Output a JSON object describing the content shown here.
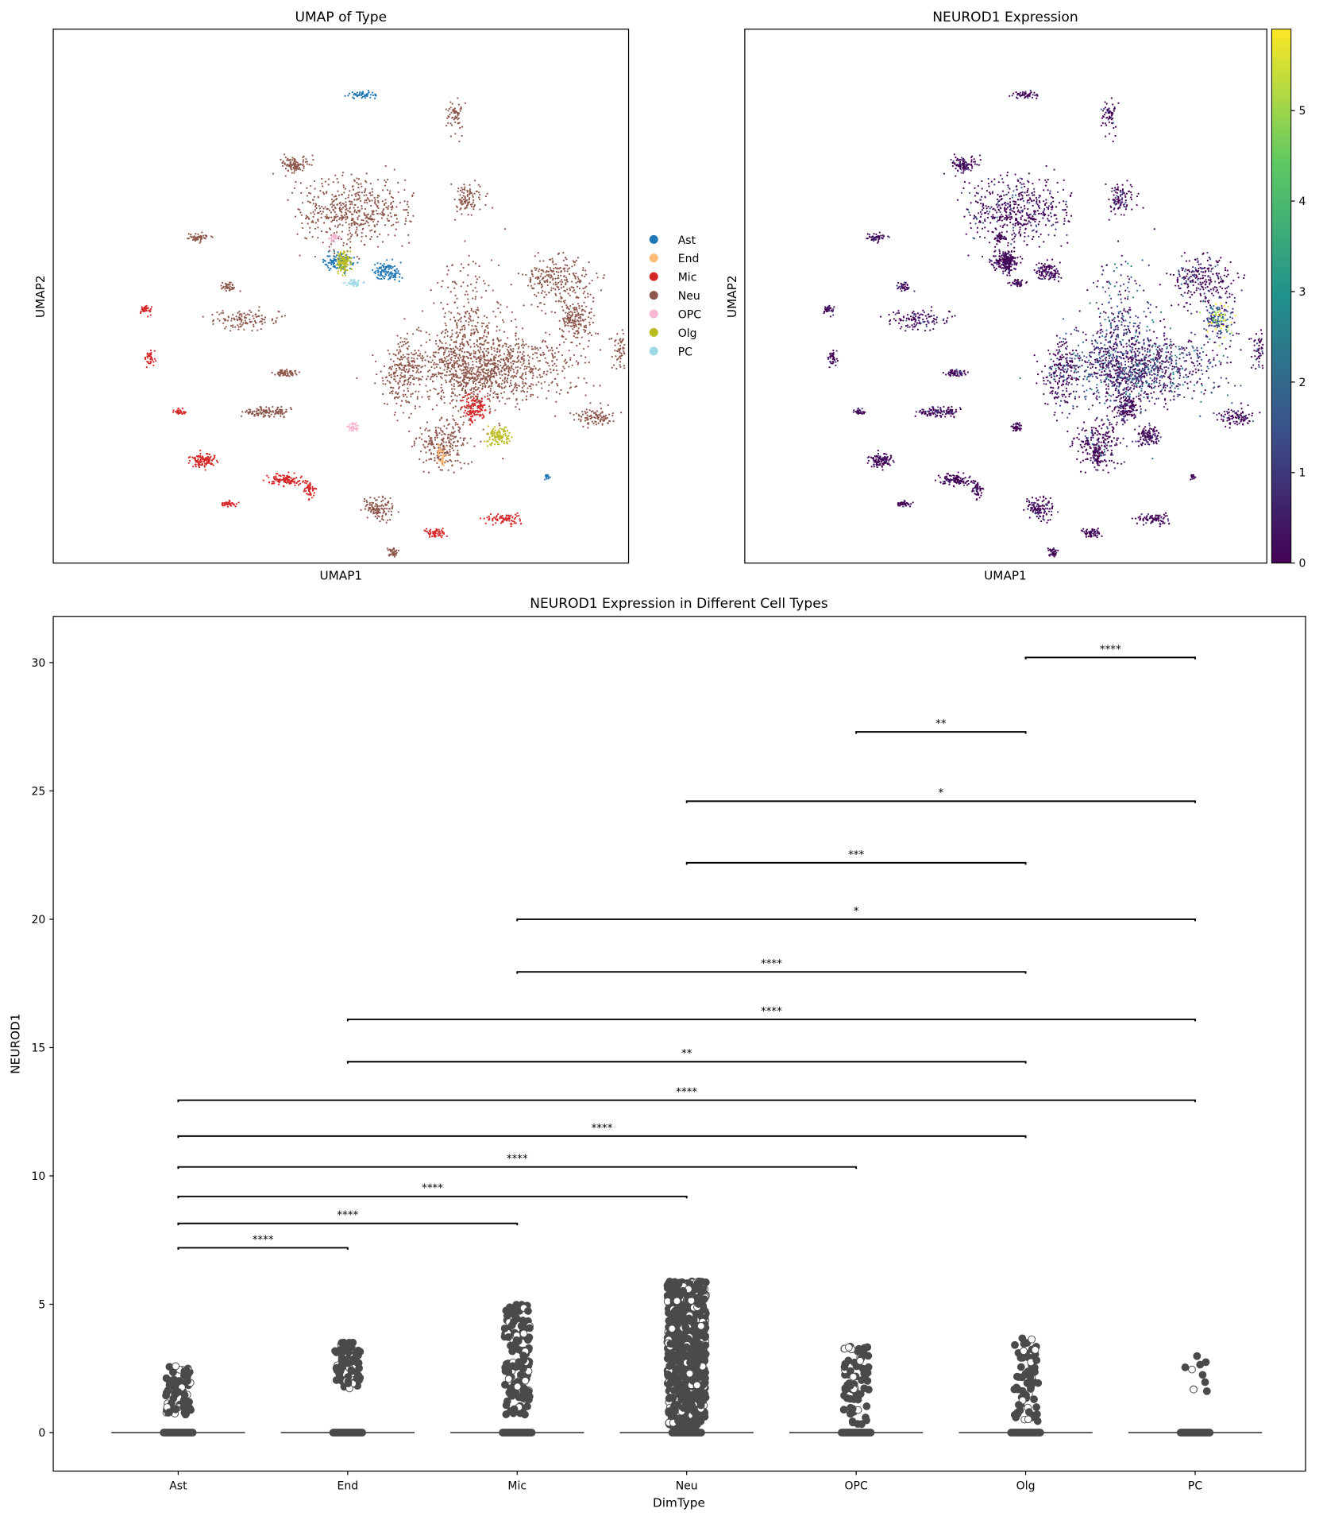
{
  "chart_data": [
    {
      "type": "scatter",
      "title": "UMAP of Type",
      "xlabel": "UMAP1",
      "ylabel": "UMAP2",
      "legend": {
        "placement": "right",
        "entries": [
          {
            "label": "Ast",
            "color": "#1f77b4"
          },
          {
            "label": "End",
            "color": "#ffbb78"
          },
          {
            "label": "Mic",
            "color": "#d62728"
          },
          {
            "label": "Neu",
            "color": "#8c564b"
          },
          {
            "label": "OPC",
            "color": "#f7b6d2"
          },
          {
            "label": "Olg",
            "color": "#bcbd22"
          },
          {
            "label": "PC",
            "color": "#9edae5"
          }
        ]
      }
    },
    {
      "type": "scatter",
      "title": "NEUROD1 Expression",
      "xlabel": "UMAP1",
      "ylabel": "UMAP2",
      "colormap": "viridis",
      "colorbar": {
        "range": [
          0,
          5.9
        ],
        "ticks": [
          "0",
          "1",
          "2",
          "3",
          "4",
          "5"
        ]
      }
    },
    {
      "type": "box",
      "title": "NEUROD1 Expression in Different Cell Types",
      "xlabel": "DimType",
      "ylabel": "NEUROD1",
      "ylim": [
        -1.5,
        31.8
      ],
      "yticks": [
        "0",
        "5",
        "10",
        "15",
        "20",
        "25",
        "30"
      ],
      "categories": [
        "Ast",
        "End",
        "Mic",
        "Neu",
        "OPC",
        "Olg",
        "PC"
      ],
      "median": [
        0,
        0,
        0,
        0,
        0,
        0,
        0
      ],
      "outlier_max": [
        2.6,
        3.6,
        5.0,
        5.9,
        3.4,
        3.8,
        3.1
      ],
      "outlier_min": [
        0.7,
        1.7,
        0.7,
        0.1,
        0.3,
        0.4,
        1.6
      ],
      "point_color": "#4a4a4a",
      "significance": [
        {
          "from": "Ast",
          "to": "End",
          "y": 7.2,
          "label": "****"
        },
        {
          "from": "Ast",
          "to": "Mic",
          "y": 8.15,
          "label": "****"
        },
        {
          "from": "Ast",
          "to": "Neu",
          "y": 9.2,
          "label": "****"
        },
        {
          "from": "Ast",
          "to": "OPC",
          "y": 10.35,
          "label": "****"
        },
        {
          "from": "Ast",
          "to": "Olg",
          "y": 11.55,
          "label": "****"
        },
        {
          "from": "Ast",
          "to": "PC",
          "y": 12.95,
          "label": "****"
        },
        {
          "from": "End",
          "to": "Olg",
          "y": 14.45,
          "label": "**"
        },
        {
          "from": "End",
          "to": "PC",
          "y": 16.1,
          "label": "****"
        },
        {
          "from": "Mic",
          "to": "Olg",
          "y": 17.95,
          "label": "****"
        },
        {
          "from": "Mic",
          "to": "PC",
          "y": 20.0,
          "label": "*"
        },
        {
          "from": "Neu",
          "to": "Olg",
          "y": 22.2,
          "label": "***"
        },
        {
          "from": "Neu",
          "to": "PC",
          "y": 24.6,
          "label": "*"
        },
        {
          "from": "OPC",
          "to": "Olg",
          "y": 27.3,
          "label": "**"
        },
        {
          "from": "Olg",
          "to": "PC",
          "y": 30.2,
          "label": "****"
        }
      ]
    }
  ]
}
